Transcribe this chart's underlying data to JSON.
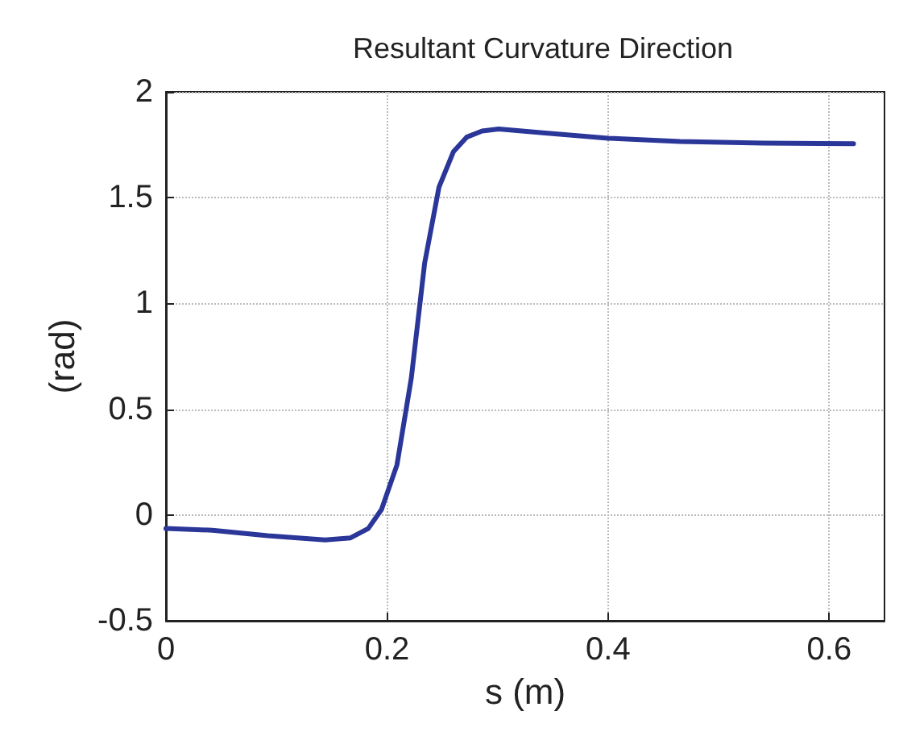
{
  "chart_data": {
    "type": "line",
    "title": "Resultant Curvature Direction",
    "xlabel": "s (m)",
    "ylabel": "(rad)",
    "series": [
      {
        "color": "#2b3699",
        "x": [
          0,
          0.042,
          0.092,
          0.144,
          0.167,
          0.183,
          0.195,
          0.209,
          0.222,
          0.234,
          0.247,
          0.26,
          0.272,
          0.286,
          0.301,
          0.341,
          0.4,
          0.465,
          0.54,
          0.622
        ],
        "values": [
          -0.064,
          -0.072,
          -0.098,
          -0.118,
          -0.108,
          -0.064,
          0.026,
          0.237,
          0.649,
          1.19,
          1.55,
          1.717,
          1.786,
          1.815,
          1.825,
          1.807,
          1.781,
          1.766,
          1.758,
          1.755
        ]
      }
    ],
    "xlim": [
      0,
      0.65
    ],
    "xticks": [
      0,
      0.2,
      0.4,
      0.6
    ],
    "ylim": [
      -0.5,
      2
    ],
    "yticks": [
      -0.5,
      0,
      0.5,
      1,
      1.5,
      2
    ],
    "grid": true,
    "line_style": "solid",
    "marker": "none"
  }
}
